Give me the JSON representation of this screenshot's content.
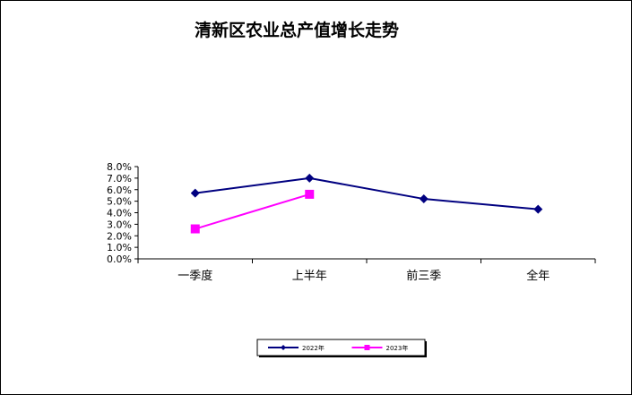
{
  "chart_data": {
    "type": "line",
    "title": "清新区农业总产值增长走势",
    "xlabel": "",
    "ylabel": "",
    "categories": [
      "一季度",
      "上半年",
      "前三季",
      "全年"
    ],
    "ylim": [
      0,
      8
    ],
    "yticks": [
      "8.0%",
      "7.0%",
      "6.0%",
      "5.0%",
      "4.0%",
      "3.0%",
      "2.0%",
      "1.0%",
      "0.0%"
    ],
    "series": [
      {
        "name": "2022年",
        "values": [
          5.7,
          7.0,
          5.2,
          4.3
        ],
        "color": "#000080",
        "marker": "diamond"
      },
      {
        "name": "2023年",
        "values": [
          2.6,
          5.6,
          null,
          null
        ],
        "color": "#ff00ff",
        "marker": "square"
      }
    ],
    "grid": false,
    "legend": "bottom"
  }
}
